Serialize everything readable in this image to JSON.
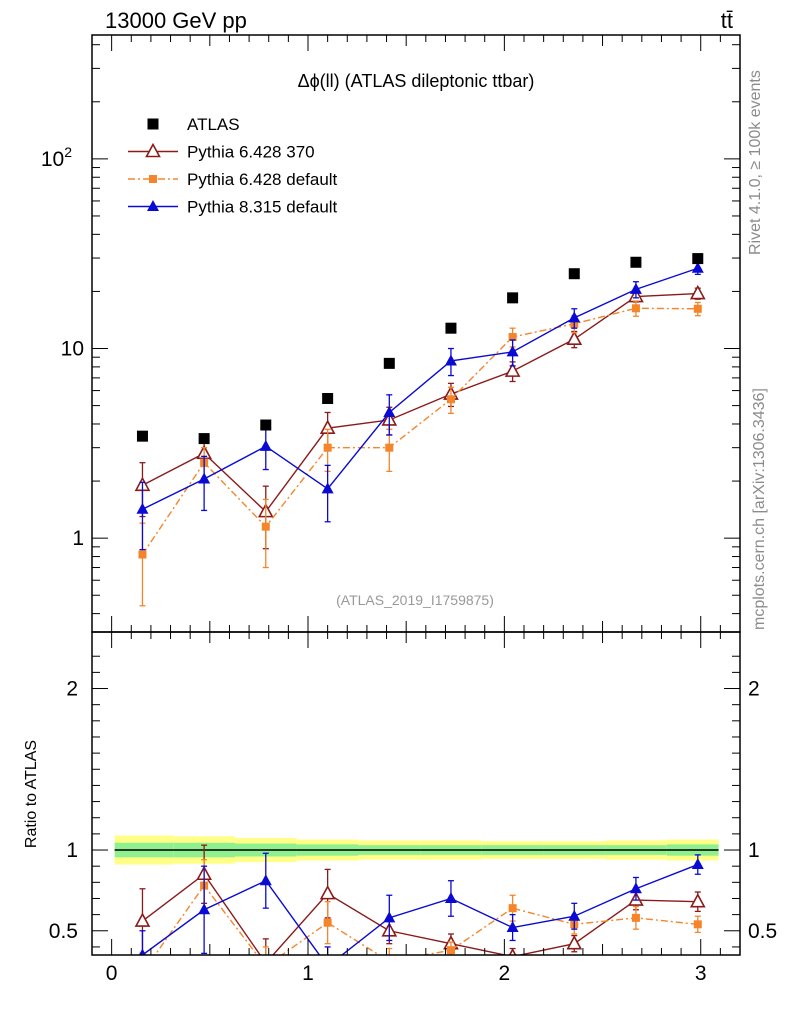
{
  "header": {
    "left": "13000 GeV pp",
    "right": "tt̄"
  },
  "side_text": {
    "rivet": "Rivet 4.1.0, ≥ 100k events",
    "source": "mcplots.cern.ch [arXiv:1306.3436]"
  },
  "chart_data": {
    "type": "scatter",
    "title": "Δϕ(ll) (ATLAS dileptonic ttbar)",
    "analysis_label": "(ATLAS_2019_I1759875)",
    "xlabel": "",
    "ylabel_top": "",
    "ylabel_ratio": "Ratio to ATLAS",
    "xlim": [
      -0.1,
      3.2
    ],
    "ylim_top_log": [
      0.32,
      450
    ],
    "ylim_ratio": [
      0.35,
      2.35
    ],
    "x_ticks": [
      0,
      1,
      2,
      3
    ],
    "x_tick_labels": [
      "0",
      "1",
      "2",
      "3"
    ],
    "y_top_ticks": [
      1,
      10,
      100
    ],
    "y_top_tick_labels": [
      "1",
      "10",
      "10²"
    ],
    "y_ratio_ticks": [
      0.5,
      1,
      2
    ],
    "y_ratio_tick_labels": [
      "0.5",
      "1",
      "2"
    ],
    "x": [
      0.157,
      0.471,
      0.785,
      1.1,
      1.414,
      1.728,
      2.042,
      2.356,
      2.67,
      2.985
    ],
    "bin_edges": [
      0,
      0.314,
      0.628,
      0.942,
      1.257,
      1.571,
      1.885,
      2.199,
      2.513,
      2.827,
      3.142
    ],
    "series": [
      {
        "name": "ATLAS",
        "style": "data",
        "marker": "square",
        "color": "#000000",
        "values": [
          3.45,
          3.35,
          3.95,
          5.45,
          8.35,
          12.8,
          18.5,
          24.8,
          28.5,
          29.8
        ],
        "errors": [
          0,
          0,
          0,
          0,
          0,
          0,
          0,
          0,
          0,
          0
        ],
        "ratio": [
          1,
          1,
          1,
          1,
          1,
          1,
          1,
          1,
          1,
          1
        ]
      },
      {
        "name": "Pythia 6.428 370",
        "style": "line",
        "marker": "open-triangle",
        "color": "#8b1a1a",
        "values": [
          1.9,
          2.8,
          1.38,
          3.8,
          4.2,
          5.75,
          7.6,
          11.2,
          18.8,
          19.5
        ],
        "errors": [
          0.6,
          0.4,
          0.5,
          0.8,
          0.7,
          0.8,
          0.9,
          1.1,
          1.2,
          1.3
        ],
        "ratio": [
          0.56,
          0.85,
          0.3,
          0.73,
          0.5,
          0.42,
          0.34,
          0.42,
          0.69,
          0.68
        ],
        "ratio_errors": [
          0.2,
          0.18,
          0.15,
          0.15,
          0.08,
          0.06,
          0.05,
          0.05,
          0.06,
          0.06
        ]
      },
      {
        "name": "Pythia 6.428 default",
        "style": "dashdot",
        "marker": "small-square",
        "color": "#f5852a",
        "values": [
          0.82,
          2.5,
          1.15,
          3.0,
          3.0,
          5.4,
          11.5,
          13.5,
          16.3,
          16.2
        ],
        "errors": [
          0.38,
          0.5,
          0.45,
          0.75,
          0.75,
          0.85,
          1.3,
          1.4,
          1.5,
          1.3
        ],
        "ratio": [
          0.24,
          0.78,
          0.28,
          0.55,
          0.31,
          0.38,
          0.64,
          0.54,
          0.58,
          0.54
        ],
        "ratio_errors": [
          0.12,
          0.16,
          0.12,
          0.13,
          0.08,
          0.05,
          0.08,
          0.06,
          0.07,
          0.05
        ]
      },
      {
        "name": "Pythia 8.315 default",
        "style": "line",
        "marker": "filled-triangle",
        "color": "#0a0ad2",
        "values": [
          1.42,
          2.05,
          3.05,
          1.82,
          4.6,
          8.6,
          9.6,
          14.5,
          20.5,
          26.5
        ],
        "errors": [
          0.55,
          0.65,
          0.75,
          0.6,
          1.1,
          1.4,
          1.5,
          1.7,
          2.0,
          1.9
        ],
        "ratio": [
          0.35,
          0.63,
          0.81,
          0.28,
          0.58,
          0.7,
          0.52,
          0.59,
          0.76,
          0.91
        ],
        "ratio_errors": [
          0.15,
          0.27,
          0.17,
          0.12,
          0.14,
          0.11,
          0.08,
          0.08,
          0.07,
          0.06
        ]
      }
    ],
    "uncertainty_band": {
      "inner_color": "#8ef08e",
      "outer_color": "#ffff88",
      "inner_halfwidth": [
        0.045,
        0.045,
        0.04,
        0.035,
        0.03,
        0.03,
        0.03,
        0.03,
        0.03,
        0.035
      ],
      "outer_halfwidth": [
        0.09,
        0.085,
        0.075,
        0.065,
        0.06,
        0.06,
        0.055,
        0.055,
        0.06,
        0.065
      ]
    }
  }
}
